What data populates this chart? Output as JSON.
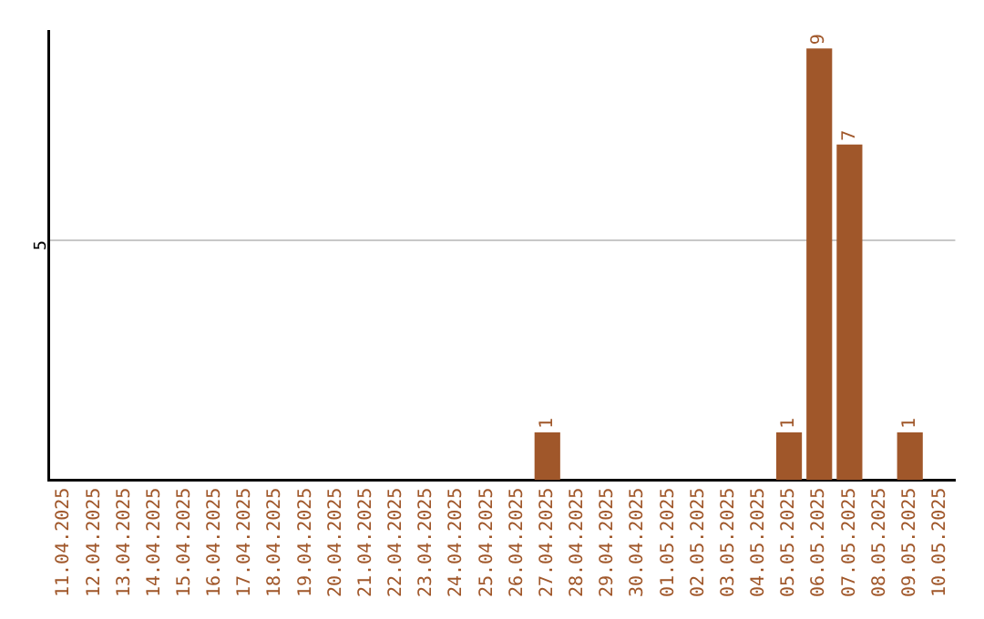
{
  "chart_data": {
    "type": "bar",
    "ylim": [
      0,
      9.35
    ],
    "yticks": [
      5
    ],
    "grid": "y",
    "categories": [
      "11.04.2025",
      "12.04.2025",
      "13.04.2025",
      "14.04.2025",
      "15.04.2025",
      "16.04.2025",
      "17.04.2025",
      "18.04.2025",
      "19.04.2025",
      "20.04.2025",
      "21.04.2025",
      "22.04.2025",
      "23.04.2025",
      "24.04.2025",
      "25.04.2025",
      "26.04.2025",
      "27.04.2025",
      "28.04.2025",
      "29.04.2025",
      "30.04.2025",
      "01.05.2025",
      "02.05.2025",
      "03.05.2025",
      "04.05.2025",
      "05.05.2025",
      "06.05.2025",
      "07.05.2025",
      "08.05.2025",
      "09.05.2025",
      "10.05.2025"
    ],
    "values": [
      null,
      null,
      null,
      null,
      null,
      null,
      null,
      null,
      null,
      null,
      null,
      null,
      null,
      null,
      null,
      null,
      1,
      null,
      null,
      null,
      null,
      null,
      null,
      null,
      1,
      9,
      7,
      null,
      1,
      null
    ],
    "data_labels": true,
    "color": "#a0572a",
    "legend": false
  }
}
